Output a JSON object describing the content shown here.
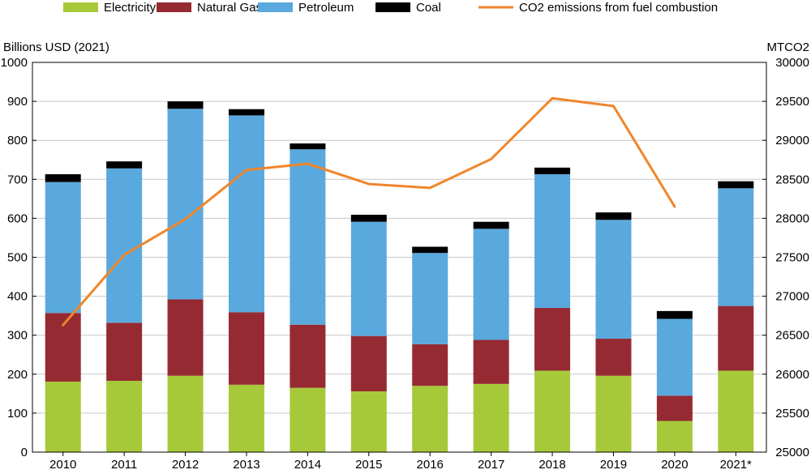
{
  "chart_data": {
    "type": "bar",
    "stacked": true,
    "categories": [
      "2010",
      "2011",
      "2012",
      "2013",
      "2014",
      "2015",
      "2016",
      "2017",
      "2018",
      "2019",
      "2020",
      "2021*"
    ],
    "series": [
      {
        "name": "Electricity",
        "color": "#a6c93a",
        "values": [
          181,
          183,
          196,
          173,
          165,
          156,
          170,
          175,
          209,
          196,
          80,
          209
        ]
      },
      {
        "name": "Natural Gas",
        "color": "#962a32",
        "values": [
          176,
          149,
          196,
          186,
          162,
          142,
          107,
          113,
          161,
          95,
          65,
          166
        ]
      },
      {
        "name": "Petroleum",
        "color": "#5aa9de",
        "values": [
          336,
          396,
          489,
          505,
          450,
          293,
          234,
          285,
          343,
          305,
          197,
          302
        ]
      },
      {
        "name": "Coal",
        "color": "#000000",
        "values": [
          20,
          18,
          19,
          16,
          15,
          18,
          16,
          18,
          17,
          19,
          20,
          18
        ]
      }
    ],
    "line_series": {
      "name": "CO2 emissions from fuel combustion",
      "color": "#f0862b",
      "axis": "right",
      "values": [
        26630,
        27530,
        27990,
        28620,
        28700,
        28440,
        28390,
        28760,
        29540,
        29440,
        28150,
        null
      ]
    },
    "ylabel": "Billions USD (2021)",
    "y2label": "MTCO2",
    "ylim": [
      0,
      1000
    ],
    "y2lim": [
      25000,
      30000
    ],
    "yticks": [
      "0",
      "100",
      "200",
      "300",
      "400",
      "500",
      "600",
      "700",
      "800",
      "900",
      "1000"
    ],
    "y2ticks": [
      "25000",
      "25500",
      "26000",
      "26500",
      "27000",
      "27500",
      "28000",
      "28500",
      "29000",
      "29500",
      "30000"
    ],
    "grid": true,
    "legend_position": "top"
  }
}
